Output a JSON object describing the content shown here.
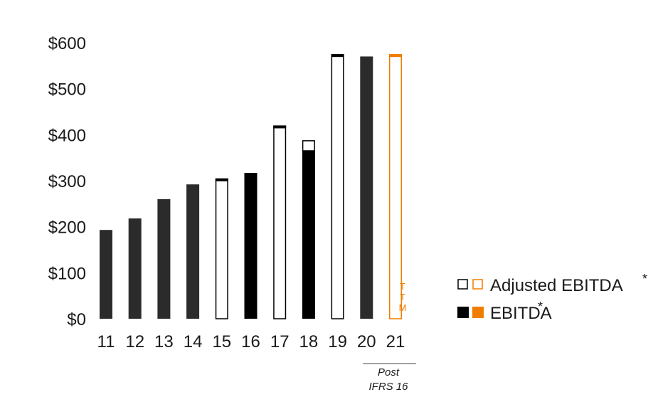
{
  "chart_data": {
    "type": "bar",
    "categories": [
      "11",
      "12",
      "13",
      "14",
      "15",
      "16",
      "17",
      "18",
      "19",
      "20",
      "21"
    ],
    "yticks": [
      "$0",
      "$100",
      "$200",
      "$300",
      "$400",
      "$500",
      "$600"
    ],
    "ylim": [
      0,
      600
    ],
    "series": [
      {
        "name": "EBITDA",
        "values": [
          193,
          218,
          260,
          292,
          null,
          317,
          null,
          365,
          null,
          570,
          null
        ]
      },
      {
        "name": "Adjusted EBITDA",
        "values": [
          null,
          null,
          null,
          null,
          305,
          null,
          420,
          388,
          575,
          null,
          575
        ]
      }
    ],
    "bar_styles": [
      "solid-dark",
      "solid-dark",
      "solid-dark",
      "solid-dark",
      "outline-black",
      "solid-black",
      "outline-black",
      "solid-black",
      "outline-black",
      "solid-dark",
      "outline-orange"
    ],
    "annotations": {
      "ttm": [
        "T",
        "T",
        "M"
      ],
      "post_note_line1": "Post",
      "post_note_line2": "IFRS 16"
    },
    "legend": {
      "placement": "right",
      "items": [
        {
          "label": "Adjusted EBITDA",
          "marker": "*",
          "style": "outline"
        },
        {
          "label": "EBITDA",
          "marker": "*",
          "style": "filled"
        }
      ]
    },
    "colors": {
      "dark": "#2b2b2b",
      "black": "#000000",
      "orange": "#f07d00"
    },
    "grid": false
  }
}
